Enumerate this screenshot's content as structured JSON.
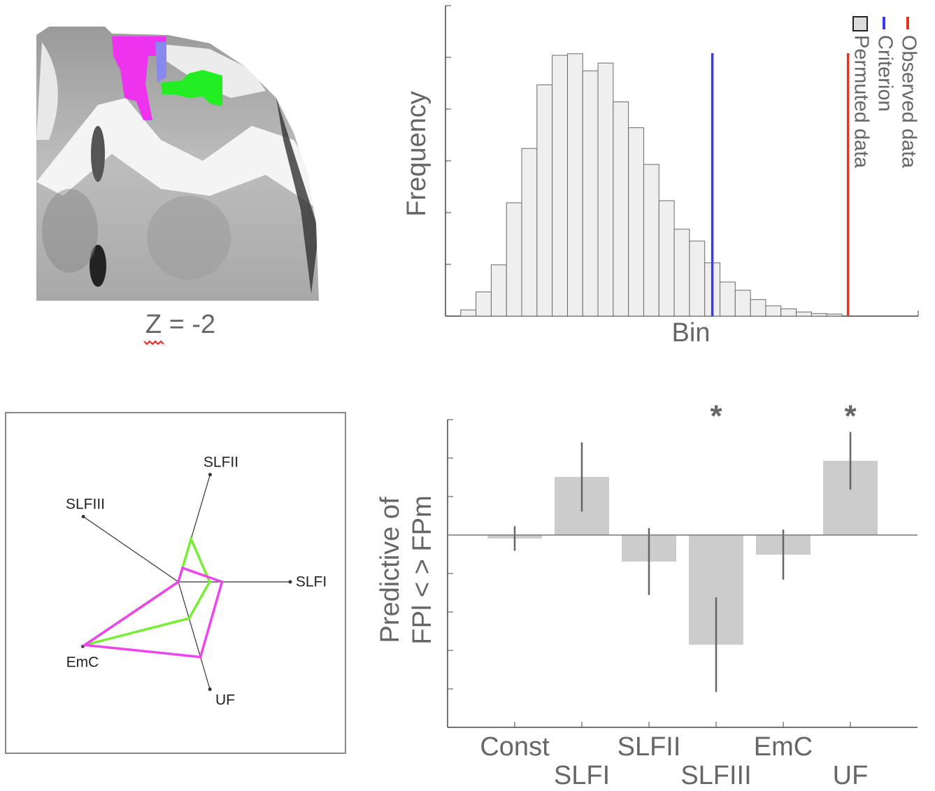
{
  "image": {
    "caption": "Z = -2"
  },
  "chart_data": [
    {
      "type": "histogram",
      "xlabel": "Bin",
      "ylabel": "Frequency",
      "bins": [
        1,
        2,
        3,
        4,
        5,
        6,
        7,
        8,
        9,
        10,
        11,
        12,
        13,
        14,
        15,
        16,
        17,
        18,
        19,
        20,
        21,
        22,
        23,
        24,
        25,
        26
      ],
      "counts": [
        12,
        47,
        99,
        219,
        324,
        447,
        504,
        507,
        474,
        489,
        414,
        364,
        293,
        223,
        168,
        145,
        103,
        66,
        50,
        32,
        20,
        14,
        8,
        5,
        4
      ],
      "name": "Permuted data",
      "color": "#efefef",
      "edgecolor": "#6a6a6a",
      "xlim": [
        0,
        31
      ],
      "ylim": [
        0,
        600
      ],
      "yticks": [
        100,
        200,
        300,
        400,
        500
      ],
      "lines": [
        {
          "name": "Observed data",
          "color": "#e8321e",
          "x": 26.4
        },
        {
          "name": "Criterion",
          "color": "#3a3aee",
          "x": 17.5
        }
      ],
      "legend": "upper right"
    },
    {
      "type": "radar",
      "categories": [
        "SLFII",
        "SLFI",
        "UF",
        "EmC",
        "SLFIII"
      ],
      "rlim": [
        0,
        1
      ],
      "series": [
        {
          "color": "#77ee33",
          "values": [
            0.4,
            0.28,
            0.34,
            0.98,
            0
          ]
        },
        {
          "color": "#ee44ee",
          "values": [
            0.13,
            0.39,
            0.7,
            0.98,
            0
          ]
        }
      ]
    },
    {
      "type": "bar",
      "ylabel": [
        "Predictive of",
        "FPl < > FPm"
      ],
      "categories": [
        "Const",
        "SLFI",
        "SLFII",
        "SLFIII",
        "EmC",
        "UF"
      ],
      "values": [
        -0.09,
        1.51,
        -0.69,
        -2.85,
        -0.51,
        1.93
      ],
      "errors": [
        0.32,
        0.9,
        0.87,
        1.23,
        0.65,
        0.75
      ],
      "color": "#cccccc",
      "errcolor": "#666666",
      "ylim": [
        -5,
        3
      ],
      "yticks": [
        -4,
        -3,
        -2,
        -1,
        0,
        1,
        2,
        3
      ],
      "zero_line": true,
      "annotations": [
        {
          "text": "*",
          "x": "SLFIII"
        },
        {
          "text": "*",
          "x": "UF"
        }
      ]
    }
  ]
}
